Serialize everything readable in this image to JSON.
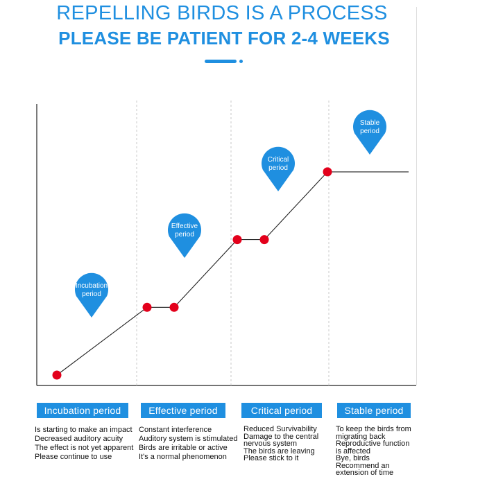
{
  "header": {
    "title_line1": "REPELLING BIRDS IS A PROCESS",
    "title_line2": "PLEASE BE PATIENT FOR 2-4 WEEKS"
  },
  "colors": {
    "accent": "#1f8fe0",
    "point": "#e3001b",
    "line": "#222222"
  },
  "diagram": {
    "points": [
      {
        "x": 0.0,
        "y": 0.0
      },
      {
        "x": 1.0,
        "y": 1.0
      },
      {
        "x": 1.3,
        "y": 1.0
      },
      {
        "x": 2.0,
        "y": 2.0
      },
      {
        "x": 2.3,
        "y": 2.0
      },
      {
        "x": 3.0,
        "y": 3.0
      }
    ],
    "plateau_end_x": 3.9,
    "pins": [
      {
        "lines": [
          "Incubation",
          "period"
        ]
      },
      {
        "lines": [
          "Effective",
          "period"
        ]
      },
      {
        "lines": [
          "Critical",
          "period"
        ]
      },
      {
        "lines": [
          "Stable",
          "period"
        ]
      }
    ]
  },
  "periods": [
    {
      "label": "Incubation period",
      "notes": [
        "Is starting to make an impact",
        "Decreased auditory acuity",
        "The effect is not yet apparent",
        "Please continue to use"
      ]
    },
    {
      "label": "Effective period",
      "notes": [
        "Constant interference",
        "Auditory system is stimulated",
        "Birds are irritable or active",
        "It's a normal phenomenon"
      ]
    },
    {
      "label": "Critical period",
      "notes": [
        "Reduced Survivability",
        "Damage to the central",
        "nervous system",
        "The birds are leaving",
        "Please stick to it"
      ]
    },
    {
      "label": "Stable period",
      "notes": [
        "To keep the birds from",
        "migrating back",
        "Reproductive function",
        "is affected",
        "Bye, birds",
        "Recommend an",
        "extension of time"
      ]
    }
  ]
}
